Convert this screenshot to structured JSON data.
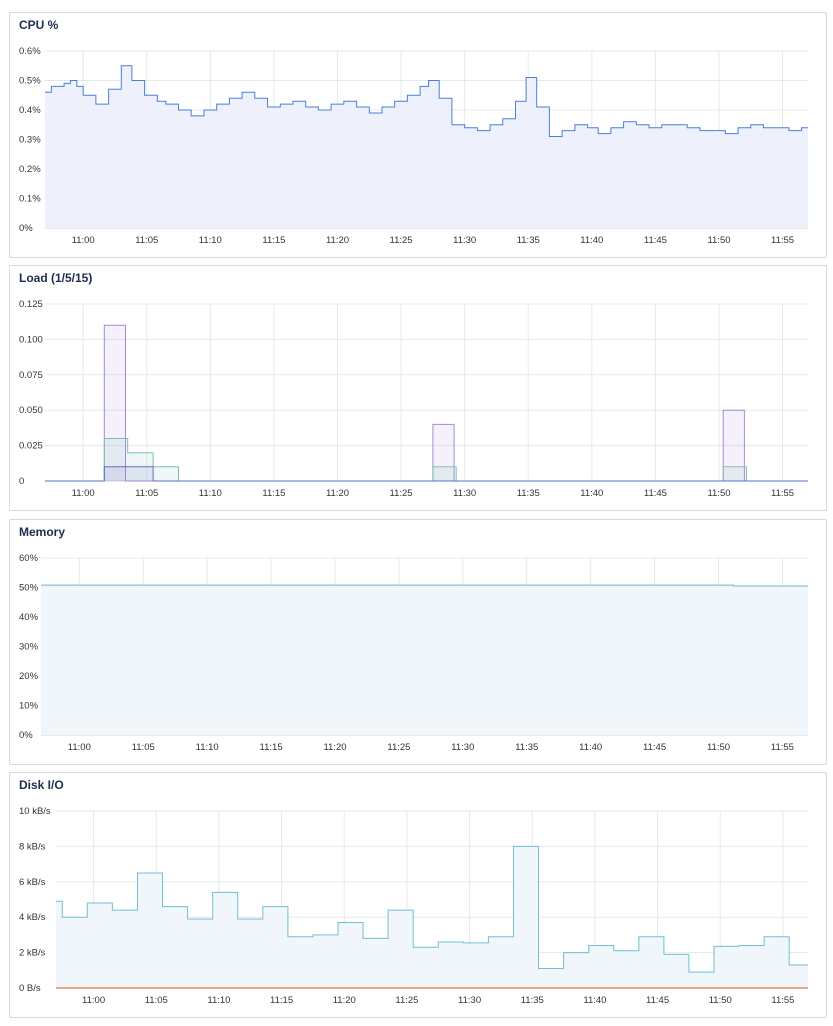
{
  "panels": [
    {
      "id": "cpu",
      "title": "CPU %"
    },
    {
      "id": "load",
      "title": "Load (1/5/15)"
    },
    {
      "id": "memory",
      "title": "Memory"
    },
    {
      "id": "disk",
      "title": "Disk I/O"
    }
  ],
  "chart_data": [
    {
      "type": "area",
      "title": "CPU %",
      "x_range": [
        "10:57",
        "11:57"
      ],
      "xticks": [
        "11:00",
        "11:05",
        "11:10",
        "11:15",
        "11:20",
        "11:25",
        "11:30",
        "11:35",
        "11:40",
        "11:45",
        "11:50",
        "11:55"
      ],
      "yticks": [
        "0%",
        "0.1%",
        "0.2%",
        "0.3%",
        "0.4%",
        "0.5%",
        "0.6%"
      ],
      "ylim": [
        0,
        0.6
      ],
      "grid": true,
      "colors": {
        "line": "#4a7fd6",
        "fill": "#eef1fc"
      },
      "series": [
        {
          "values": [
            [
              "10:57:00",
              0.46
            ],
            [
              "10:57:30",
              0.48
            ],
            [
              "10:58:30",
              0.49
            ],
            [
              "10:59:00",
              0.5
            ],
            [
              "10:59:30",
              0.48
            ],
            [
              "11:00:00",
              0.45
            ],
            [
              "11:01:00",
              0.42
            ],
            [
              "11:02:00",
              0.47
            ],
            [
              "11:03:00",
              0.55
            ],
            [
              "11:03:50",
              0.5
            ],
            [
              "11:04:50",
              0.45
            ],
            [
              "11:05:50",
              0.43
            ],
            [
              "11:06:30",
              0.42
            ],
            [
              "11:07:30",
              0.4
            ],
            [
              "11:08:30",
              0.38
            ],
            [
              "11:09:30",
              0.4
            ],
            [
              "11:10:30",
              0.42
            ],
            [
              "11:11:30",
              0.44
            ],
            [
              "11:12:30",
              0.46
            ],
            [
              "11:13:30",
              0.44
            ],
            [
              "11:14:30",
              0.41
            ],
            [
              "11:15:30",
              0.42
            ],
            [
              "11:16:30",
              0.43
            ],
            [
              "11:17:30",
              0.41
            ],
            [
              "11:18:30",
              0.4
            ],
            [
              "11:19:30",
              0.42
            ],
            [
              "11:20:30",
              0.43
            ],
            [
              "11:21:30",
              0.41
            ],
            [
              "11:22:30",
              0.39
            ],
            [
              "11:23:30",
              0.41
            ],
            [
              "11:24:30",
              0.43
            ],
            [
              "11:25:30",
              0.45
            ],
            [
              "11:26:30",
              0.48
            ],
            [
              "11:27:10",
              0.5
            ],
            [
              "11:28:00",
              0.44
            ],
            [
              "11:29:00",
              0.35
            ],
            [
              "11:30:00",
              0.34
            ],
            [
              "11:31:00",
              0.33
            ],
            [
              "11:32:00",
              0.35
            ],
            [
              "11:33:00",
              0.37
            ],
            [
              "11:34:00",
              0.43
            ],
            [
              "11:34:50",
              0.51
            ],
            [
              "11:35:40",
              0.41
            ],
            [
              "11:36:40",
              0.31
            ],
            [
              "11:37:40",
              0.33
            ],
            [
              "11:38:40",
              0.35
            ],
            [
              "11:39:40",
              0.34
            ],
            [
              "11:40:30",
              0.32
            ],
            [
              "11:41:30",
              0.34
            ],
            [
              "11:42:30",
              0.36
            ],
            [
              "11:43:30",
              0.35
            ],
            [
              "11:44:30",
              0.34
            ],
            [
              "11:45:30",
              0.35
            ],
            [
              "11:46:30",
              0.35
            ],
            [
              "11:47:30",
              0.34
            ],
            [
              "11:48:30",
              0.33
            ],
            [
              "11:49:30",
              0.33
            ],
            [
              "11:50:30",
              0.32
            ],
            [
              "11:51:30",
              0.34
            ],
            [
              "11:52:30",
              0.35
            ],
            [
              "11:53:30",
              0.34
            ],
            [
              "11:54:30",
              0.34
            ],
            [
              "11:55:30",
              0.33
            ],
            [
              "11:56:30",
              0.34
            ]
          ]
        }
      ]
    },
    {
      "type": "area",
      "title": "Load (1/5/15)",
      "x_range": [
        "10:57",
        "11:57"
      ],
      "xticks": [
        "11:00",
        "11:05",
        "11:10",
        "11:15",
        "11:20",
        "11:25",
        "11:30",
        "11:35",
        "11:40",
        "11:45",
        "11:50",
        "11:55"
      ],
      "yticks": [
        "0",
        "0.025",
        "0.050",
        "0.075",
        "0.100",
        "0.125"
      ],
      "ylim": [
        0,
        0.125
      ],
      "grid": true,
      "colors": {
        "fill_opacity": "0.12"
      },
      "series": [
        {
          "color": "#a68ad6",
          "values": [
            [
              "10:57:00",
              0
            ],
            [
              "11:01:30",
              0
            ],
            [
              "11:01:40",
              0.11
            ],
            [
              "11:03:10",
              0.11
            ],
            [
              "11:03:20",
              0
            ],
            [
              "11:27:20",
              0
            ],
            [
              "11:27:30",
              0.04
            ],
            [
              "11:29:00",
              0.04
            ],
            [
              "11:29:10",
              0
            ],
            [
              "11:50:10",
              0
            ],
            [
              "11:50:20",
              0.05
            ],
            [
              "11:51:50",
              0.05
            ],
            [
              "11:52:00",
              0
            ],
            [
              "11:57:00",
              0
            ]
          ]
        },
        {
          "color": "#7fbfb3",
          "values": [
            [
              "10:57:00",
              0
            ],
            [
              "11:01:30",
              0
            ],
            [
              "11:01:40",
              0.03
            ],
            [
              "11:03:20",
              0.03
            ],
            [
              "11:03:30",
              0.02
            ],
            [
              "11:05:20",
              0.02
            ],
            [
              "11:05:30",
              0.01
            ],
            [
              "11:07:20",
              0.01
            ],
            [
              "11:07:30",
              0
            ],
            [
              "11:27:20",
              0
            ],
            [
              "11:27:30",
              0.01
            ],
            [
              "11:29:10",
              0.01
            ],
            [
              "11:29:20",
              0
            ],
            [
              "11:50:10",
              0
            ],
            [
              "11:50:20",
              0.01
            ],
            [
              "11:52:00",
              0.01
            ],
            [
              "11:52:10",
              0
            ],
            [
              "11:57:00",
              0
            ]
          ]
        },
        {
          "color": "#5b6fc9",
          "values": [
            [
              "10:57:00",
              0
            ],
            [
              "11:01:30",
              0
            ],
            [
              "11:01:40",
              0.01
            ],
            [
              "11:05:20",
              0.01
            ],
            [
              "11:05:30",
              0
            ],
            [
              "11:57:00",
              0
            ]
          ]
        }
      ]
    },
    {
      "type": "area",
      "title": "Memory",
      "x_range": [
        "10:57",
        "11:57"
      ],
      "xticks": [
        "11:00",
        "11:05",
        "11:10",
        "11:15",
        "11:20",
        "11:25",
        "11:30",
        "11:35",
        "11:40",
        "11:45",
        "11:50",
        "11:55"
      ],
      "yticks": [
        "0%",
        "10%",
        "20%",
        "30%",
        "40%",
        "50%",
        "60%"
      ],
      "ylim": [
        0,
        60
      ],
      "grid": true,
      "colors": {
        "line": "#6fb3c9",
        "fill": "#f0f6f9"
      },
      "series": [
        {
          "values": [
            [
              "10:57:00",
              50.8
            ],
            [
              "11:51:00",
              50.8
            ],
            [
              "11:51:10",
              50.5
            ],
            [
              "11:57:00",
              50.5
            ]
          ]
        }
      ]
    },
    {
      "type": "area",
      "title": "Disk I/O",
      "x_range": [
        "10:57",
        "11:57"
      ],
      "xticks": [
        "11:00",
        "11:05",
        "11:10",
        "11:15",
        "11:20",
        "11:25",
        "11:30",
        "11:35",
        "11:40",
        "11:45",
        "11:50",
        "11:55"
      ],
      "yticks": [
        "0 B/s",
        "2 kB/s",
        "4 kB/s",
        "6 kB/s",
        "8 kB/s",
        "10 kB/s"
      ],
      "ylim": [
        0,
        10
      ],
      "grid": true,
      "colors": {
        "line": "#6fc0d2",
        "fill": "#f0f6fa",
        "zero_line": "#e07b3b"
      },
      "series": [
        {
          "values": [
            [
              "10:57:00",
              4.9
            ],
            [
              "10:57:30",
              4.0
            ],
            [
              "10:59:30",
              4.8
            ],
            [
              "11:01:30",
              4.4
            ],
            [
              "11:03:30",
              6.5
            ],
            [
              "11:05:30",
              4.6
            ],
            [
              "11:07:30",
              3.9
            ],
            [
              "11:09:30",
              5.4
            ],
            [
              "11:11:30",
              3.9
            ],
            [
              "11:13:30",
              4.6
            ],
            [
              "11:15:30",
              2.9
            ],
            [
              "11:17:30",
              3.0
            ],
            [
              "11:19:30",
              3.7
            ],
            [
              "11:21:30",
              2.8
            ],
            [
              "11:23:30",
              4.4
            ],
            [
              "11:25:30",
              2.3
            ],
            [
              "11:27:30",
              2.6
            ],
            [
              "11:29:30",
              2.55
            ],
            [
              "11:31:30",
              2.9
            ],
            [
              "11:33:30",
              8.0
            ],
            [
              "11:35:30",
              1.1
            ],
            [
              "11:37:30",
              2.0
            ],
            [
              "11:39:30",
              2.4
            ],
            [
              "11:41:30",
              2.1
            ],
            [
              "11:43:30",
              2.9
            ],
            [
              "11:45:30",
              1.9
            ],
            [
              "11:47:30",
              0.9
            ],
            [
              "11:49:30",
              2.35
            ],
            [
              "11:51:30",
              2.4
            ],
            [
              "11:53:30",
              2.9
            ],
            [
              "11:55:30",
              1.3
            ]
          ]
        }
      ]
    }
  ]
}
